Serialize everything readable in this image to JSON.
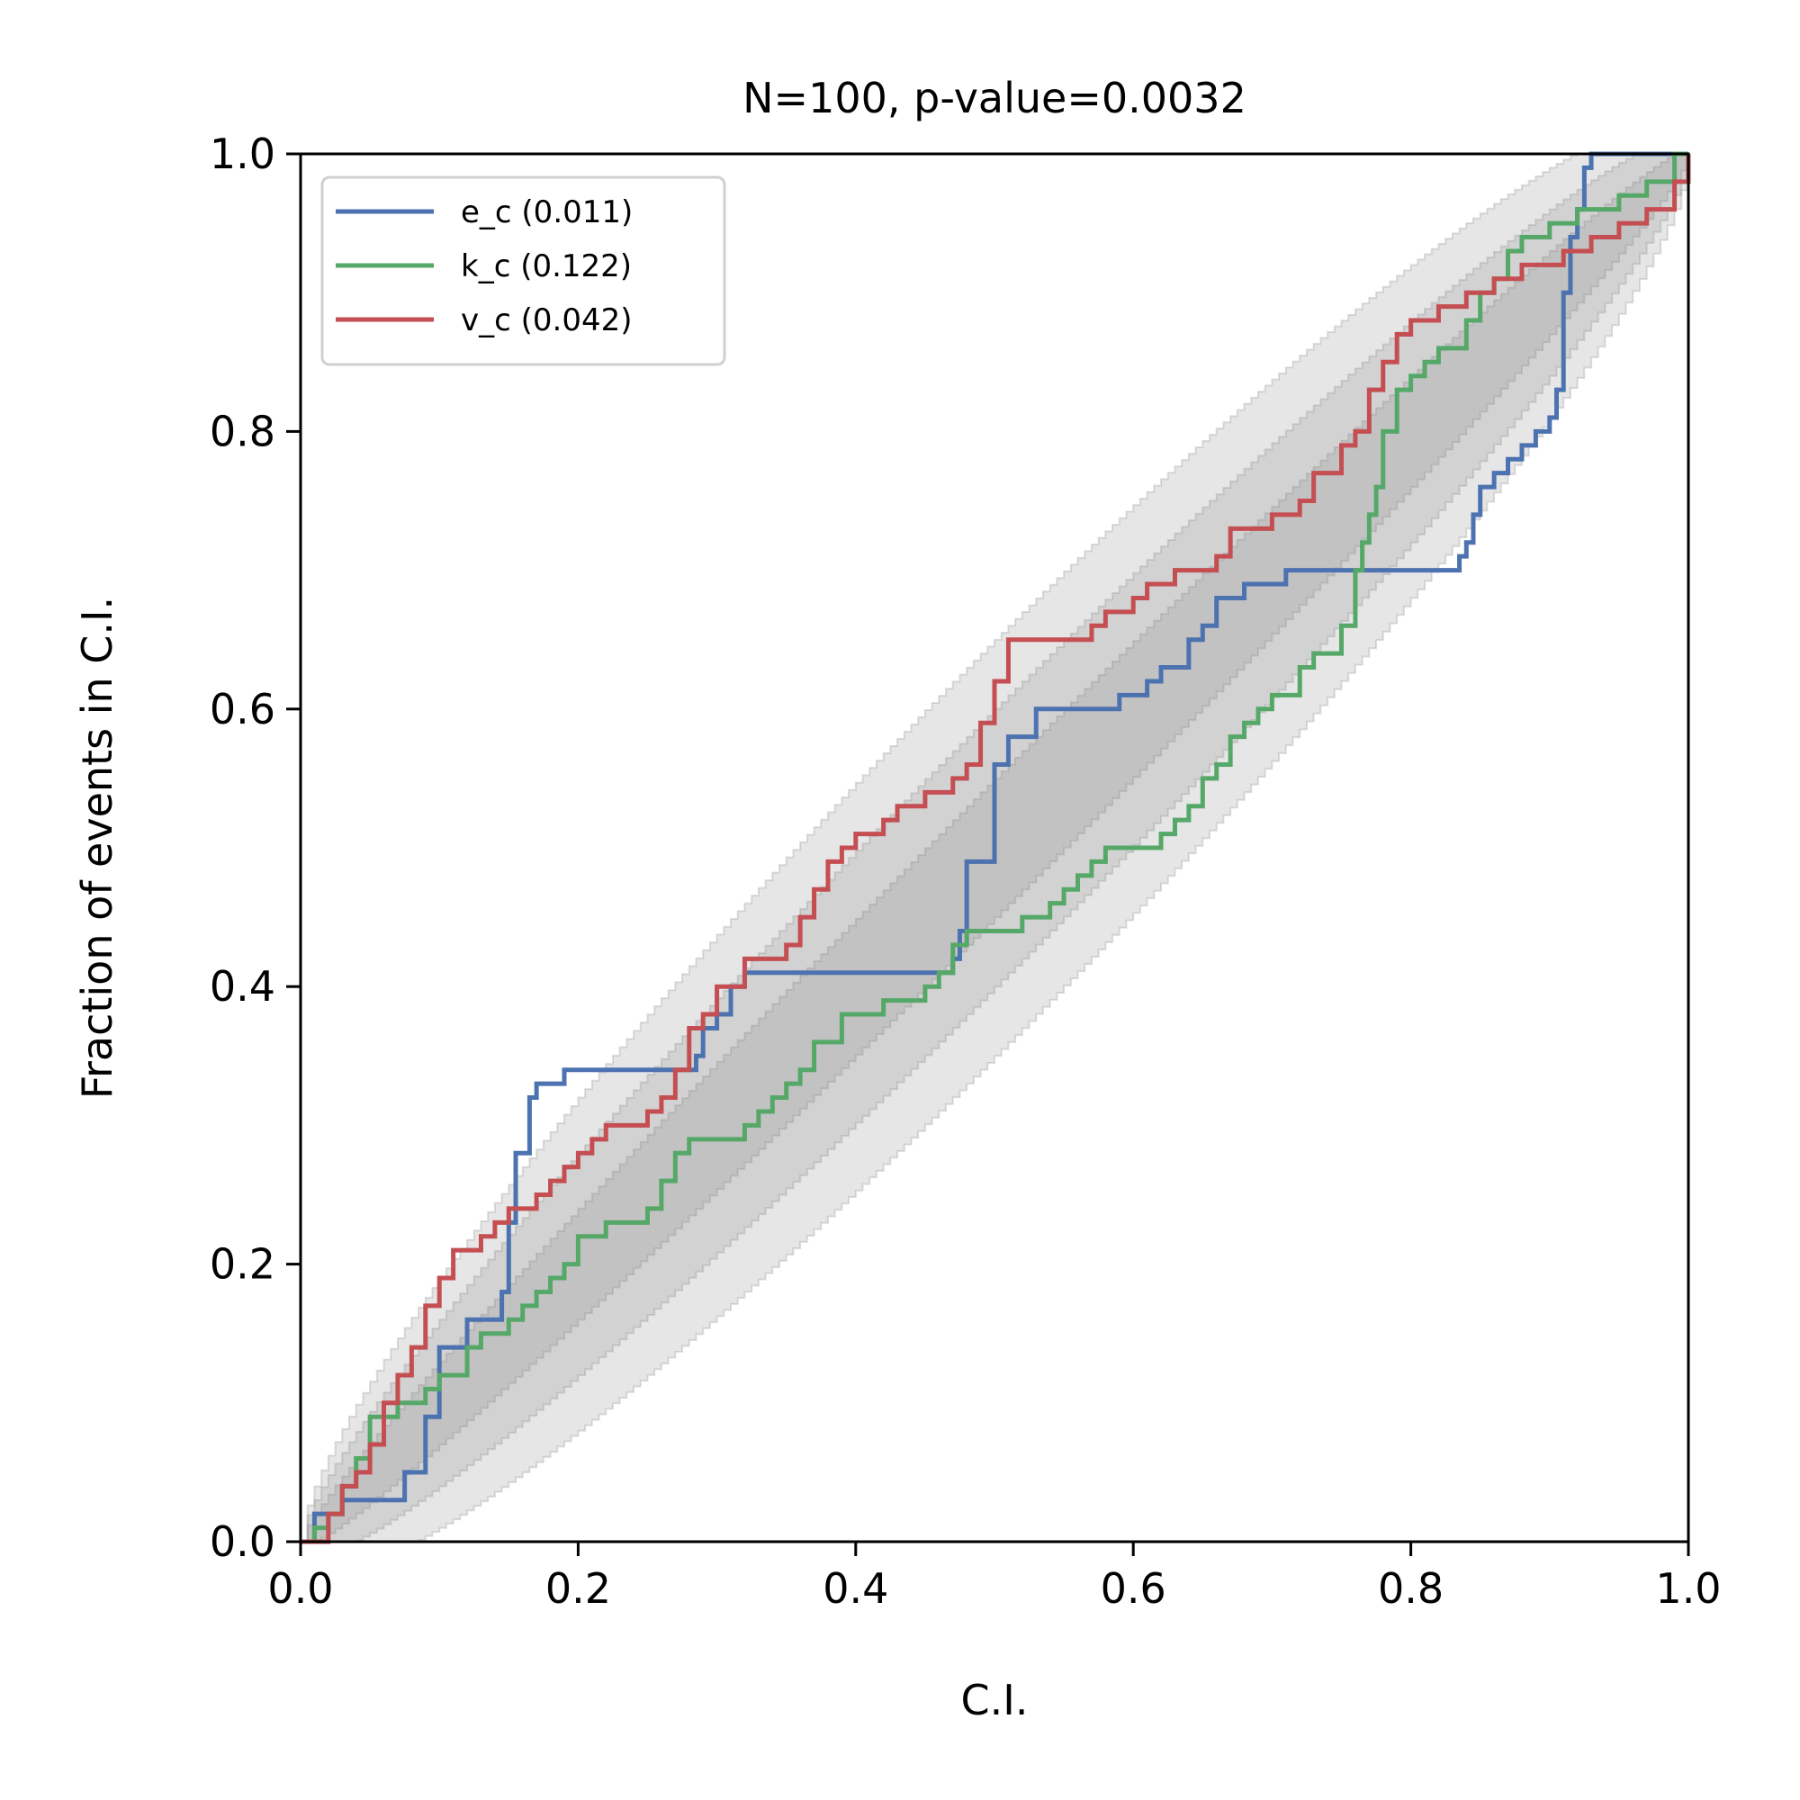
{
  "chart_data": {
    "type": "line",
    "title": "N=100, p-value=0.0032",
    "xlabel": "C.I.",
    "ylabel": "Fraction of events in C.I.",
    "xlim": [
      0,
      1
    ],
    "ylim": [
      0,
      1
    ],
    "xticks": [
      "0.0",
      "0.2",
      "0.4",
      "0.6",
      "0.8",
      "1.0"
    ],
    "yticks": [
      "0.0",
      "0.2",
      "0.4",
      "0.6",
      "0.8",
      "1.0"
    ],
    "grid": false,
    "legend_position": "upper-left",
    "confidence_bands": {
      "color": "#808080",
      "n_events": 100,
      "levels": [
        "68%",
        "95%",
        "99.7%"
      ]
    },
    "series": [
      {
        "name": "e_c (0.011)",
        "color": "#4c72b0",
        "x": [
          0.0,
          0.01,
          0.03,
          0.07,
          0.075,
          0.09,
          0.1,
          0.12,
          0.145,
          0.15,
          0.155,
          0.165,
          0.17,
          0.18,
          0.19,
          0.28,
          0.285,
          0.29,
          0.3,
          0.31,
          0.32,
          0.33,
          0.47,
          0.475,
          0.48,
          0.5,
          0.51,
          0.53,
          0.58,
          0.59,
          0.6,
          0.61,
          0.62,
          0.63,
          0.64,
          0.65,
          0.66,
          0.68,
          0.7,
          0.71,
          0.83,
          0.835,
          0.84,
          0.845,
          0.85,
          0.86,
          0.87,
          0.88,
          0.89,
          0.9,
          0.905,
          0.91,
          0.915,
          0.92,
          0.925,
          0.93,
          1.0
        ],
        "y": [
          0.0,
          0.02,
          0.03,
          0.03,
          0.05,
          0.09,
          0.14,
          0.16,
          0.18,
          0.23,
          0.28,
          0.32,
          0.33,
          0.33,
          0.34,
          0.34,
          0.35,
          0.37,
          0.38,
          0.4,
          0.41,
          0.41,
          0.42,
          0.44,
          0.49,
          0.56,
          0.58,
          0.6,
          0.6,
          0.61,
          0.61,
          0.62,
          0.63,
          0.63,
          0.65,
          0.66,
          0.68,
          0.69,
          0.69,
          0.7,
          0.7,
          0.71,
          0.72,
          0.74,
          0.76,
          0.77,
          0.78,
          0.79,
          0.8,
          0.81,
          0.83,
          0.9,
          0.94,
          0.96,
          0.99,
          1.0,
          1.0
        ]
      },
      {
        "name": "k_c (0.122)",
        "color": "#55a868",
        "x": [
          0.0,
          0.01,
          0.02,
          0.03,
          0.04,
          0.05,
          0.07,
          0.09,
          0.1,
          0.12,
          0.13,
          0.15,
          0.16,
          0.17,
          0.18,
          0.19,
          0.2,
          0.22,
          0.25,
          0.26,
          0.27,
          0.28,
          0.3,
          0.32,
          0.33,
          0.34,
          0.35,
          0.36,
          0.37,
          0.39,
          0.42,
          0.45,
          0.46,
          0.47,
          0.48,
          0.52,
          0.54,
          0.55,
          0.56,
          0.57,
          0.58,
          0.62,
          0.63,
          0.64,
          0.65,
          0.66,
          0.67,
          0.68,
          0.69,
          0.7,
          0.72,
          0.73,
          0.75,
          0.76,
          0.765,
          0.77,
          0.775,
          0.78,
          0.79,
          0.8,
          0.81,
          0.82,
          0.84,
          0.85,
          0.86,
          0.87,
          0.88,
          0.9,
          0.92,
          0.95,
          0.97,
          0.99,
          1.0
        ],
        "y": [
          0.0,
          0.01,
          0.02,
          0.04,
          0.06,
          0.09,
          0.1,
          0.11,
          0.12,
          0.14,
          0.15,
          0.16,
          0.17,
          0.18,
          0.19,
          0.2,
          0.22,
          0.23,
          0.24,
          0.26,
          0.28,
          0.29,
          0.29,
          0.3,
          0.31,
          0.32,
          0.33,
          0.34,
          0.36,
          0.38,
          0.39,
          0.4,
          0.41,
          0.43,
          0.44,
          0.45,
          0.46,
          0.47,
          0.48,
          0.49,
          0.5,
          0.51,
          0.52,
          0.53,
          0.55,
          0.56,
          0.58,
          0.59,
          0.6,
          0.61,
          0.63,
          0.64,
          0.66,
          0.7,
          0.72,
          0.74,
          0.76,
          0.8,
          0.83,
          0.84,
          0.85,
          0.86,
          0.88,
          0.9,
          0.91,
          0.93,
          0.94,
          0.95,
          0.96,
          0.97,
          0.98,
          1.0,
          1.0
        ]
      },
      {
        "name": "v_c (0.042)",
        "color": "#c44e52",
        "x": [
          0.0,
          0.02,
          0.03,
          0.04,
          0.05,
          0.06,
          0.07,
          0.08,
          0.09,
          0.1,
          0.11,
          0.13,
          0.14,
          0.15,
          0.16,
          0.17,
          0.18,
          0.19,
          0.2,
          0.21,
          0.22,
          0.23,
          0.25,
          0.26,
          0.27,
          0.28,
          0.29,
          0.3,
          0.32,
          0.35,
          0.36,
          0.37,
          0.38,
          0.39,
          0.4,
          0.42,
          0.43,
          0.45,
          0.47,
          0.48,
          0.49,
          0.5,
          0.51,
          0.56,
          0.57,
          0.58,
          0.6,
          0.61,
          0.63,
          0.66,
          0.67,
          0.7,
          0.72,
          0.73,
          0.75,
          0.76,
          0.77,
          0.78,
          0.79,
          0.8,
          0.82,
          0.84,
          0.86,
          0.88,
          0.91,
          0.93,
          0.95,
          0.97,
          0.99,
          1.0
        ],
        "y": [
          0.0,
          0.02,
          0.04,
          0.05,
          0.07,
          0.1,
          0.12,
          0.14,
          0.17,
          0.19,
          0.21,
          0.22,
          0.23,
          0.24,
          0.24,
          0.25,
          0.26,
          0.27,
          0.28,
          0.29,
          0.3,
          0.3,
          0.31,
          0.32,
          0.34,
          0.37,
          0.38,
          0.4,
          0.42,
          0.43,
          0.45,
          0.47,
          0.49,
          0.5,
          0.51,
          0.52,
          0.53,
          0.54,
          0.55,
          0.56,
          0.59,
          0.62,
          0.65,
          0.65,
          0.66,
          0.67,
          0.68,
          0.69,
          0.7,
          0.71,
          0.73,
          0.74,
          0.75,
          0.77,
          0.79,
          0.8,
          0.83,
          0.85,
          0.87,
          0.88,
          0.89,
          0.9,
          0.91,
          0.92,
          0.93,
          0.94,
          0.95,
          0.96,
          0.98,
          1.0
        ]
      }
    ]
  }
}
